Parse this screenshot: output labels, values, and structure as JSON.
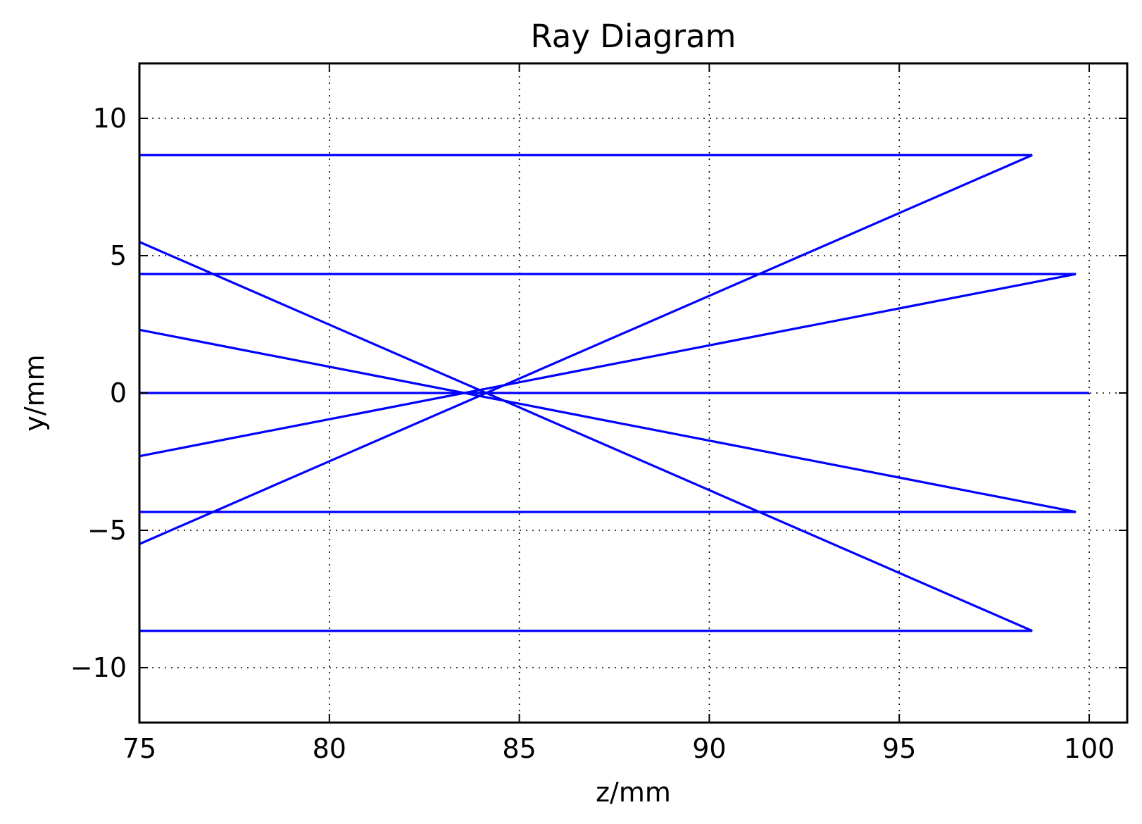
{
  "chart_data": {
    "type": "line",
    "title": "Ray Diagram",
    "xlabel": "z/mm",
    "ylabel": "y/mm",
    "xlim": [
      75,
      101
    ],
    "ylim": [
      -12,
      12
    ],
    "xticks": [
      75,
      80,
      85,
      90,
      95,
      100
    ],
    "yticks": [
      -10,
      -5,
      0,
      5,
      10
    ],
    "xtick_labels": [
      "75",
      "80",
      "85",
      "90",
      "95",
      "100"
    ],
    "ytick_labels": [
      "−10",
      "−5",
      "0",
      "5",
      "10"
    ],
    "grid": true,
    "grid_style": "dotted",
    "line_color": "#0000ff",
    "series": [
      {
        "x": [
          75,
          98.5,
          75
        ],
        "y": [
          8.66,
          8.66,
          -5.5
        ]
      },
      {
        "x": [
          75,
          99.65,
          75
        ],
        "y": [
          4.33,
          4.33,
          -2.3
        ]
      },
      {
        "x": [
          75,
          100
        ],
        "y": [
          0,
          0
        ]
      },
      {
        "x": [
          75,
          99.65,
          75
        ],
        "y": [
          -4.33,
          -4.33,
          2.3
        ]
      },
      {
        "x": [
          75,
          98.5,
          75
        ],
        "y": [
          -8.66,
          -8.66,
          5.5
        ]
      }
    ]
  }
}
